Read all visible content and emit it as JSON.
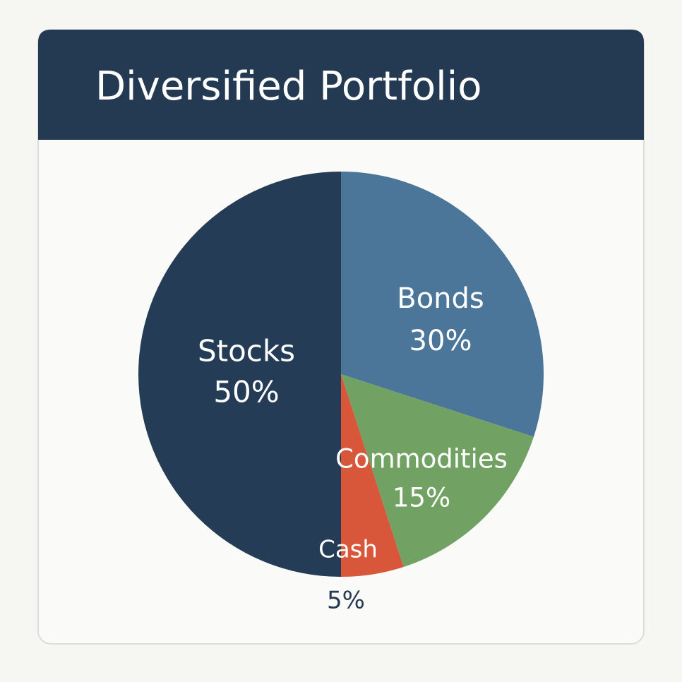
{
  "chart_data": {
    "type": "pie",
    "title": "Diversified Portfolio",
    "categories": [
      "Bonds",
      "Commodities",
      "Cash",
      "Stocks"
    ],
    "values": [
      30,
      15,
      5,
      50
    ],
    "value_labels": [
      "30%",
      "15%",
      "5%",
      "50%"
    ],
    "colors": [
      "#4b7699",
      "#72a263",
      "#d8563a",
      "#243c55"
    ]
  }
}
